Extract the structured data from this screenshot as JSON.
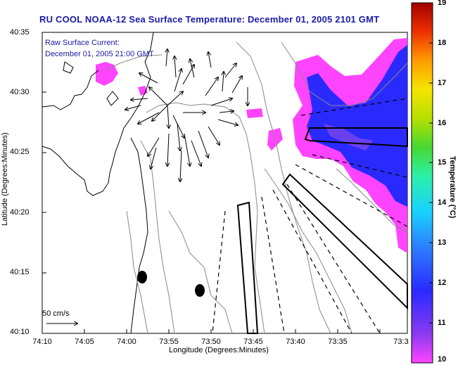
{
  "title": "RU COOL  NOAA-12  Sea Surface Temperature:  December 01, 2005 2101 GMT",
  "annotation": {
    "line1": "Raw Surface Current:",
    "line2": "December 01, 2005 21:00 GMT"
  },
  "scale_label": "50 cm/s",
  "axes": {
    "xlabel": "Longitude (Degrees:Minutes)",
    "ylabel": "Latitude (Degrees:Minutes)",
    "xticks": [
      "74:10",
      "74:05",
      "74:00",
      "73:55",
      "73:50",
      "73:45",
      "73:40",
      "73:35",
      "73:3"
    ],
    "yticks": [
      "40:35",
      "40:30",
      "40:25",
      "40:20",
      "40:15",
      "40:10"
    ]
  },
  "colorbar": {
    "label": "Temperature (°C)",
    "ticks": [
      "19",
      "18",
      "17",
      "16",
      "15",
      "14",
      "13",
      "12",
      "11",
      "10"
    ],
    "min": 10,
    "max": 19
  },
  "colors": {
    "title": "#1a1aa8",
    "land": "#ffffff",
    "water_warm_edge": "#ff44ff",
    "water_cold": "#2a2aff"
  }
}
